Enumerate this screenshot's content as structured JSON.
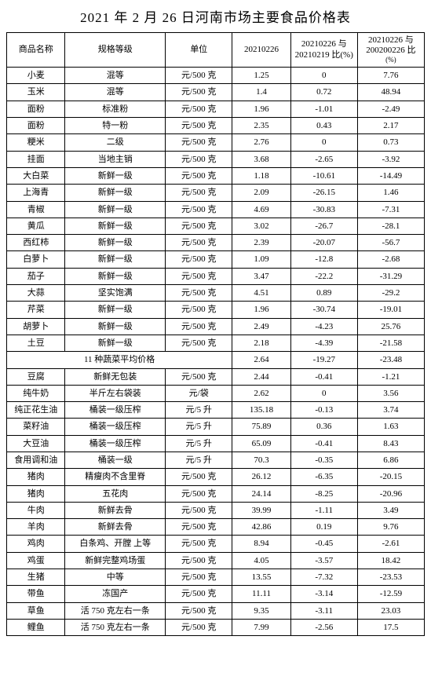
{
  "title": "2021 年 2 月 26 日河南市场主要食品价格表",
  "headers": {
    "name": "商品名称",
    "spec": "规格等级",
    "unit": "单位",
    "price": "20210226",
    "cmp1_line1": "20210226 与",
    "cmp1_line2": "20210219 比(%)",
    "cmp2_line1": "20210226 与",
    "cmp2_line2": "200200226 比",
    "cmp2_line3": "(%)"
  },
  "rows": [
    {
      "name": "小麦",
      "spec": "混等",
      "unit": "元/500 克",
      "price": "1.25",
      "cmp1": "0",
      "cmp2": "7.76"
    },
    {
      "name": "玉米",
      "spec": "混等",
      "unit": "元/500 克",
      "price": "1.4",
      "cmp1": "0.72",
      "cmp2": "48.94"
    },
    {
      "name": "面粉",
      "spec": "标准粉",
      "unit": "元/500 克",
      "price": "1.96",
      "cmp1": "-1.01",
      "cmp2": "-2.49"
    },
    {
      "name": "面粉",
      "spec": "特一粉",
      "unit": "元/500 克",
      "price": "2.35",
      "cmp1": "0.43",
      "cmp2": "2.17"
    },
    {
      "name": "粳米",
      "spec": "二级",
      "unit": "元/500 克",
      "price": "2.76",
      "cmp1": "0",
      "cmp2": "0.73"
    },
    {
      "name": "挂面",
      "spec": "当地主销",
      "unit": "元/500 克",
      "price": "3.68",
      "cmp1": "-2.65",
      "cmp2": "-3.92"
    },
    {
      "name": "大白菜",
      "spec": "新鲜一级",
      "unit": "元/500 克",
      "price": "1.18",
      "cmp1": "-10.61",
      "cmp2": "-14.49"
    },
    {
      "name": "上海青",
      "spec": "新鲜一级",
      "unit": "元/500 克",
      "price": "2.09",
      "cmp1": "-26.15",
      "cmp2": "1.46"
    },
    {
      "name": "青椒",
      "spec": "新鲜一级",
      "unit": "元/500 克",
      "price": "4.69",
      "cmp1": "-30.83",
      "cmp2": "-7.31"
    },
    {
      "name": "黄瓜",
      "spec": "新鲜一级",
      "unit": "元/500 克",
      "price": "3.02",
      "cmp1": "-26.7",
      "cmp2": "-28.1"
    },
    {
      "name": "西红柿",
      "spec": "新鲜一级",
      "unit": "元/500 克",
      "price": "2.39",
      "cmp1": "-20.07",
      "cmp2": "-56.7"
    },
    {
      "name": "白萝卜",
      "spec": "新鲜一级",
      "unit": "元/500 克",
      "price": "1.09",
      "cmp1": "-12.8",
      "cmp2": "-2.68"
    },
    {
      "name": "茄子",
      "spec": "新鲜一级",
      "unit": "元/500 克",
      "price": "3.47",
      "cmp1": "-22.2",
      "cmp2": "-31.29"
    },
    {
      "name": "大蒜",
      "spec": "坚实饱满",
      "unit": "元/500 克",
      "price": "4.51",
      "cmp1": "0.89",
      "cmp2": "-29.2"
    },
    {
      "name": "芹菜",
      "spec": "新鲜一级",
      "unit": "元/500 克",
      "price": "1.96",
      "cmp1": "-30.74",
      "cmp2": "-19.01"
    },
    {
      "name": "胡萝卜",
      "spec": "新鲜一级",
      "unit": "元/500 克",
      "price": "2.49",
      "cmp1": "-4.23",
      "cmp2": "25.76"
    },
    {
      "name": "土豆",
      "spec": "新鲜一级",
      "unit": "元/500 克",
      "price": "2.18",
      "cmp1": "-4.39",
      "cmp2": "-21.58"
    },
    {
      "merged": true,
      "label": "11 种蔬菜平均价格",
      "price": "2.64",
      "cmp1": "-19.27",
      "cmp2": "-23.48"
    },
    {
      "name": "豆腐",
      "spec": "新鲜无包装",
      "unit": "元/500 克",
      "price": "2.44",
      "cmp1": "-0.41",
      "cmp2": "-1.21"
    },
    {
      "name": "纯牛奶",
      "spec": "半斤左右袋装",
      "unit": "元/袋",
      "price": "2.62",
      "cmp1": "0",
      "cmp2": "3.56"
    },
    {
      "name": "纯正花生油",
      "spec": "桶装一级压榨",
      "unit": "元/5 升",
      "price": "135.18",
      "cmp1": "-0.13",
      "cmp2": "3.74"
    },
    {
      "name": "菜籽油",
      "spec": "桶装一级压榨",
      "unit": "元/5 升",
      "price": "75.89",
      "cmp1": "0.36",
      "cmp2": "1.63"
    },
    {
      "name": "大豆油",
      "spec": "桶装一级压榨",
      "unit": "元/5 升",
      "price": "65.09",
      "cmp1": "-0.41",
      "cmp2": "8.43"
    },
    {
      "name": "食用调和油",
      "spec": "桶装一级",
      "unit": "元/5 升",
      "price": "70.3",
      "cmp1": "-0.35",
      "cmp2": "6.86"
    },
    {
      "name": "猪肉",
      "spec": "精瘦肉不含里脊",
      "unit": "元/500 克",
      "price": "26.12",
      "cmp1": "-6.35",
      "cmp2": "-20.15"
    },
    {
      "name": "猪肉",
      "spec": "五花肉",
      "unit": "元/500 克",
      "price": "24.14",
      "cmp1": "-8.25",
      "cmp2": "-20.96"
    },
    {
      "name": "牛肉",
      "spec": "新鲜去骨",
      "unit": "元/500 克",
      "price": "39.99",
      "cmp1": "-1.11",
      "cmp2": "3.49"
    },
    {
      "name": "羊肉",
      "spec": "新鲜去骨",
      "unit": "元/500 克",
      "price": "42.86",
      "cmp1": "0.19",
      "cmp2": "9.76"
    },
    {
      "name": "鸡肉",
      "spec": "白条鸡、开膛 上等",
      "unit": "元/500 克",
      "price": "8.94",
      "cmp1": "-0.45",
      "cmp2": "-2.61"
    },
    {
      "name": "鸡蛋",
      "spec": "新鲜完整鸡场蛋",
      "unit": "元/500 克",
      "price": "4.05",
      "cmp1": "-3.57",
      "cmp2": "18.42"
    },
    {
      "name": "生猪",
      "spec": "中等",
      "unit": "元/500 克",
      "price": "13.55",
      "cmp1": "-7.32",
      "cmp2": "-23.53"
    },
    {
      "name": "带鱼",
      "spec": "冻国产",
      "unit": "元/500 克",
      "price": "11.11",
      "cmp1": "-3.14",
      "cmp2": "-12.59"
    },
    {
      "name": "草鱼",
      "spec": "活 750 克左右一条",
      "unit": "元/500 克",
      "price": "9.35",
      "cmp1": "-3.11",
      "cmp2": "23.03"
    },
    {
      "name": "鲤鱼",
      "spec": "活 750 克左右一条",
      "unit": "元/500 克",
      "price": "7.99",
      "cmp1": "-2.56",
      "cmp2": "17.5"
    }
  ],
  "styling": {
    "border_color": "#000000",
    "background_color": "#ffffff",
    "text_color": "#000000",
    "title_fontsize": 17,
    "cell_fontsize": 11,
    "font_family": "SimSun"
  }
}
